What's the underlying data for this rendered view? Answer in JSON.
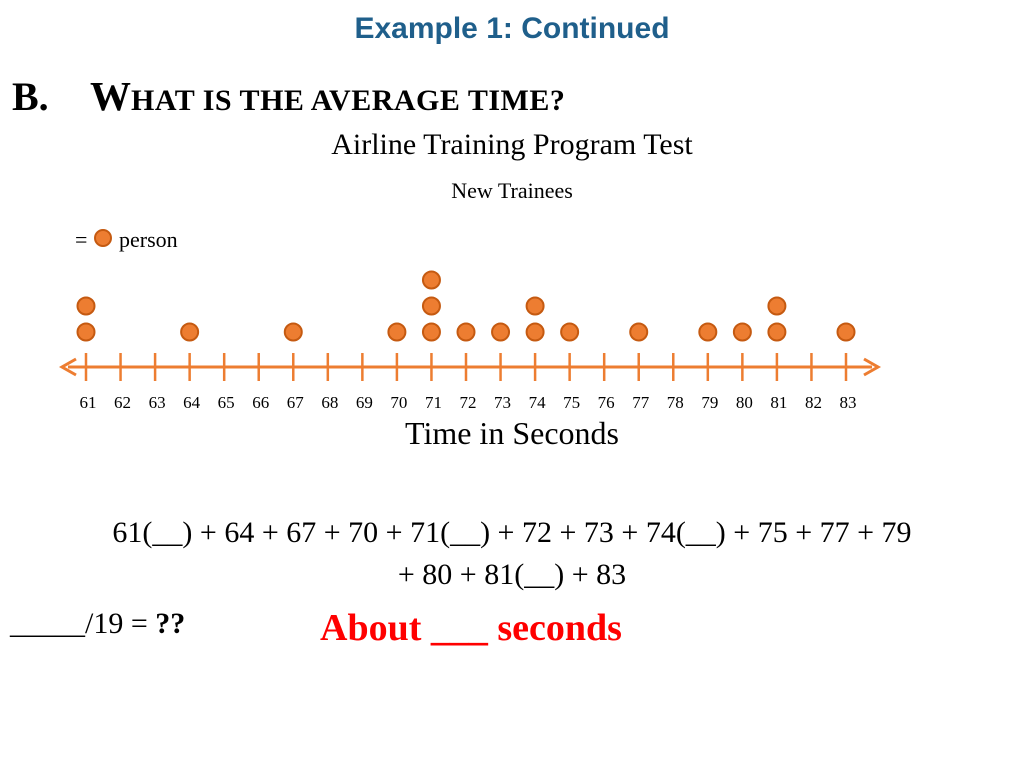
{
  "header": {
    "title": "Example 1: Continued"
  },
  "question": {
    "letter": "B.",
    "first_letter": "W",
    "rest": "hat is the average time?"
  },
  "chart_data": {
    "type": "scatter",
    "subtype": "dot-plot",
    "title": "Airline Training Program Test",
    "subtitle": "New Trainees",
    "legend": {
      "symbol_label": "=",
      "text": "1 person",
      "visible_text": "person"
    },
    "xlabel": "Time in Seconds",
    "ylabel": "",
    "xlim": [
      61,
      83
    ],
    "x_ticks": [
      61,
      62,
      63,
      64,
      65,
      66,
      67,
      68,
      69,
      70,
      71,
      72,
      73,
      74,
      75,
      76,
      77,
      78,
      79,
      80,
      81,
      82,
      83
    ],
    "points": [
      {
        "x": 61,
        "count": 2
      },
      {
        "x": 64,
        "count": 1
      },
      {
        "x": 67,
        "count": 1
      },
      {
        "x": 70,
        "count": 1
      },
      {
        "x": 71,
        "count": 3
      },
      {
        "x": 72,
        "count": 1
      },
      {
        "x": 73,
        "count": 1
      },
      {
        "x": 74,
        "count": 2
      },
      {
        "x": 75,
        "count": 1
      },
      {
        "x": 77,
        "count": 1
      },
      {
        "x": 79,
        "count": 1
      },
      {
        "x": 80,
        "count": 1
      },
      {
        "x": 81,
        "count": 2
      },
      {
        "x": 83,
        "count": 1
      }
    ],
    "colors": {
      "dot_fill": "#ed7d31",
      "dot_stroke": "#c55a11",
      "axis": "#ed7d31"
    },
    "grid": false
  },
  "equation": {
    "line1": "61(__) + 64 + 67 + 70 + 71(__) + 72 + 73 + 74(__) + 75 + 77 + 79",
    "line2": "+ 80 + 81(__) + 83"
  },
  "fraction": {
    "numerator": "_____/19 =",
    "result": "??"
  },
  "answer": {
    "text": "About ___ seconds"
  }
}
